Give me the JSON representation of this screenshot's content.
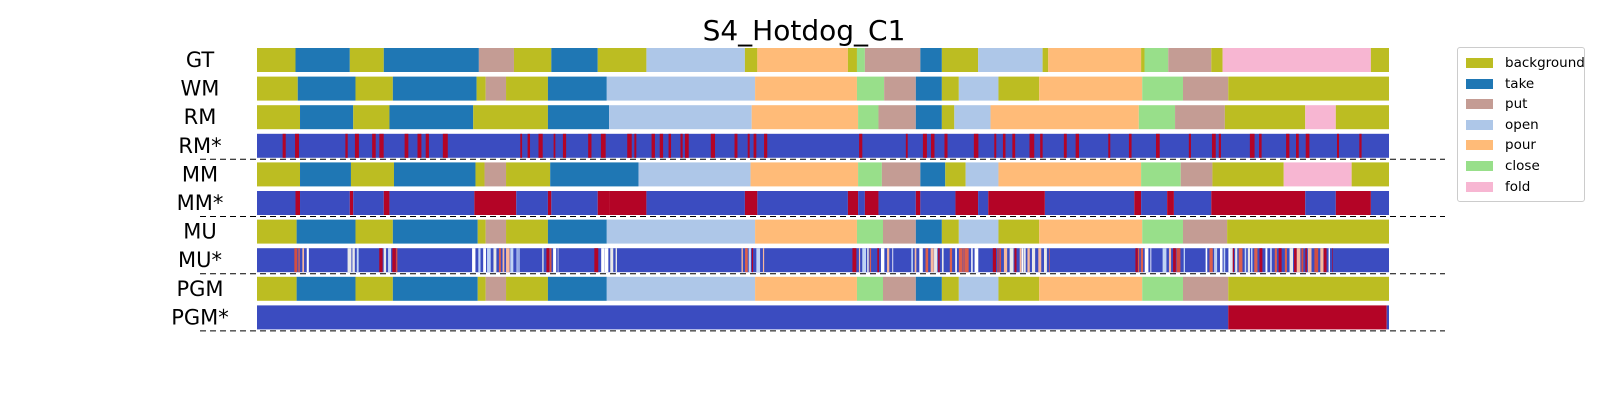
{
  "chart_data": {
    "type": "segmentation-timeline",
    "title": "S4_Hotdog_C1",
    "x_range": [
      0,
      1
    ],
    "classes": [
      {
        "name": "background",
        "color": "#bcbd22"
      },
      {
        "name": "take",
        "color": "#1f77b4"
      },
      {
        "name": "put",
        "color": "#c49c94"
      },
      {
        "name": "open",
        "color": "#aec7e8"
      },
      {
        "name": "pour",
        "color": "#ffbb78"
      },
      {
        "name": "close",
        "color": "#98df8a"
      },
      {
        "name": "fold",
        "color": "#f7b6d2"
      }
    ],
    "error_colors": {
      "correct": "#3b4cc0",
      "error": "#b40426"
    },
    "rows": [
      {
        "label": "GT",
        "kind": "segments",
        "segments": [
          [
            0,
            0.034,
            "background"
          ],
          [
            0.034,
            0.082,
            "take"
          ],
          [
            0.082,
            0.112,
            "background"
          ],
          [
            0.112,
            0.196,
            "take"
          ],
          [
            0.196,
            0.227,
            "put"
          ],
          [
            0.227,
            0.26,
            "background"
          ],
          [
            0.26,
            0.301,
            "take"
          ],
          [
            0.301,
            0.344,
            "background"
          ],
          [
            0.344,
            0.431,
            "open"
          ],
          [
            0.431,
            0.442,
            "background"
          ],
          [
            0.442,
            0.522,
            "pour"
          ],
          [
            0.522,
            0.53,
            "background"
          ],
          [
            0.53,
            0.537,
            "close"
          ],
          [
            0.537,
            0.586,
            "put"
          ],
          [
            0.586,
            0.605,
            "take"
          ],
          [
            0.605,
            0.637,
            "background"
          ],
          [
            0.637,
            0.694,
            "open"
          ],
          [
            0.694,
            0.699,
            "background"
          ],
          [
            0.699,
            0.781,
            "pour"
          ],
          [
            0.781,
            0.784,
            "background"
          ],
          [
            0.784,
            0.805,
            "close"
          ],
          [
            0.805,
            0.843,
            "put"
          ],
          [
            0.843,
            0.853,
            "background"
          ],
          [
            0.853,
            0.984,
            "fold"
          ],
          [
            0.984,
            1,
            "background"
          ]
        ]
      },
      {
        "label": "WM",
        "kind": "segments",
        "segments": [
          [
            0,
            0.036,
            "background"
          ],
          [
            0.036,
            0.087,
            "take"
          ],
          [
            0.087,
            0.12,
            "background"
          ],
          [
            0.12,
            0.194,
            "take"
          ],
          [
            0.194,
            0.202,
            "background"
          ],
          [
            0.202,
            0.22,
            "put"
          ],
          [
            0.22,
            0.257,
            "background"
          ],
          [
            0.257,
            0.309,
            "take"
          ],
          [
            0.309,
            0.44,
            "open"
          ],
          [
            0.44,
            0.53,
            "pour"
          ],
          [
            0.53,
            0.554,
            "close"
          ],
          [
            0.554,
            0.582,
            "put"
          ],
          [
            0.582,
            0.605,
            "take"
          ],
          [
            0.605,
            0.62,
            "background"
          ],
          [
            0.62,
            0.655,
            "open"
          ],
          [
            0.655,
            0.691,
            "background"
          ],
          [
            0.691,
            0.782,
            "pour"
          ],
          [
            0.782,
            0.818,
            "close"
          ],
          [
            0.818,
            0.858,
            "put"
          ],
          [
            0.858,
            1,
            "background"
          ]
        ]
      },
      {
        "label": "RM",
        "kind": "segments",
        "segments": [
          [
            0,
            0.038,
            "background"
          ],
          [
            0.038,
            0.085,
            "take"
          ],
          [
            0.085,
            0.117,
            "background"
          ],
          [
            0.117,
            0.191,
            "take"
          ],
          [
            0.191,
            0.257,
            "background"
          ],
          [
            0.257,
            0.311,
            "take"
          ],
          [
            0.311,
            0.437,
            "open"
          ],
          [
            0.437,
            0.531,
            "pour"
          ],
          [
            0.531,
            0.549,
            "close"
          ],
          [
            0.549,
            0.582,
            "put"
          ],
          [
            0.582,
            0.605,
            "take"
          ],
          [
            0.605,
            0.616,
            "background"
          ],
          [
            0.616,
            0.648,
            "open"
          ],
          [
            0.648,
            0.779,
            "pour"
          ],
          [
            0.779,
            0.811,
            "close"
          ],
          [
            0.811,
            0.855,
            "put"
          ],
          [
            0.855,
            0.926,
            "background"
          ],
          [
            0.926,
            0.953,
            "fold"
          ],
          [
            0.953,
            1,
            "background"
          ]
        ]
      },
      {
        "label": "RM*",
        "kind": "errors-noisy",
        "seed": 7,
        "density": 0.42
      },
      {
        "label": "MM",
        "kind": "segments",
        "segments": [
          [
            0,
            0.038,
            "background"
          ],
          [
            0.038,
            0.083,
            "take"
          ],
          [
            0.083,
            0.121,
            "background"
          ],
          [
            0.121,
            0.193,
            "take"
          ],
          [
            0.193,
            0.201,
            "background"
          ],
          [
            0.201,
            0.22,
            "put"
          ],
          [
            0.22,
            0.259,
            "background"
          ],
          [
            0.259,
            0.337,
            "take"
          ],
          [
            0.337,
            0.436,
            "open"
          ],
          [
            0.436,
            0.531,
            "pour"
          ],
          [
            0.531,
            0.552,
            "close"
          ],
          [
            0.552,
            0.586,
            "put"
          ],
          [
            0.586,
            0.608,
            "take"
          ],
          [
            0.608,
            0.626,
            "background"
          ],
          [
            0.626,
            0.655,
            "open"
          ],
          [
            0.655,
            0.781,
            "pour"
          ],
          [
            0.781,
            0.816,
            "close"
          ],
          [
            0.816,
            0.844,
            "put"
          ],
          [
            0.844,
            0.907,
            "background"
          ],
          [
            0.907,
            0.967,
            "fold"
          ],
          [
            0.967,
            1,
            "background"
          ]
        ]
      },
      {
        "label": "MM*",
        "kind": "errors",
        "segments": [
          [
            0,
            0.034,
            0
          ],
          [
            0.034,
            0.038,
            1
          ],
          [
            0.038,
            0.082,
            0
          ],
          [
            0.082,
            0.085,
            1
          ],
          [
            0.085,
            0.112,
            0
          ],
          [
            0.112,
            0.117,
            1
          ],
          [
            0.117,
            0.192,
            0
          ],
          [
            0.192,
            0.229,
            1
          ],
          [
            0.229,
            0.257,
            0
          ],
          [
            0.257,
            0.26,
            1
          ],
          [
            0.26,
            0.301,
            0
          ],
          [
            0.301,
            0.311,
            1
          ],
          [
            0.311,
            0.344,
            1
          ],
          [
            0.344,
            0.431,
            0
          ],
          [
            0.431,
            0.442,
            1
          ],
          [
            0.442,
            0.522,
            0
          ],
          [
            0.522,
            0.531,
            1
          ],
          [
            0.531,
            0.537,
            0
          ],
          [
            0.537,
            0.549,
            1
          ],
          [
            0.549,
            0.582,
            0
          ],
          [
            0.582,
            0.586,
            1
          ],
          [
            0.586,
            0.617,
            0
          ],
          [
            0.617,
            0.637,
            1
          ],
          [
            0.637,
            0.646,
            0
          ],
          [
            0.646,
            0.696,
            1
          ],
          [
            0.696,
            0.775,
            0
          ],
          [
            0.775,
            0.781,
            1
          ],
          [
            0.781,
            0.804,
            0
          ],
          [
            0.804,
            0.81,
            1
          ],
          [
            0.81,
            0.843,
            0
          ],
          [
            0.843,
            0.926,
            1
          ],
          [
            0.926,
            0.953,
            0
          ],
          [
            0.953,
            0.984,
            1
          ],
          [
            0.984,
            1,
            0
          ]
        ]
      },
      {
        "label": "MU",
        "kind": "segments",
        "segments": [
          [
            0,
            0.035,
            "background"
          ],
          [
            0.035,
            0.087,
            "take"
          ],
          [
            0.087,
            0.12,
            "background"
          ],
          [
            0.12,
            0.195,
            "take"
          ],
          [
            0.195,
            0.202,
            "background"
          ],
          [
            0.202,
            0.22,
            "put"
          ],
          [
            0.22,
            0.257,
            "background"
          ],
          [
            0.257,
            0.309,
            "take"
          ],
          [
            0.309,
            0.44,
            "open"
          ],
          [
            0.44,
            0.53,
            "pour"
          ],
          [
            0.53,
            0.553,
            "close"
          ],
          [
            0.553,
            0.582,
            "put"
          ],
          [
            0.582,
            0.605,
            "take"
          ],
          [
            0.605,
            0.62,
            "background"
          ],
          [
            0.62,
            0.655,
            "open"
          ],
          [
            0.655,
            0.691,
            "background"
          ],
          [
            0.691,
            0.782,
            "pour"
          ],
          [
            0.782,
            0.818,
            "close"
          ],
          [
            0.818,
            0.857,
            "put"
          ],
          [
            0.857,
            1,
            "background"
          ]
        ]
      },
      {
        "label": "MU*",
        "kind": "errors-clusters",
        "seed": 11,
        "clusters": [
          [
            0.033,
            0.046
          ],
          [
            0.08,
            0.09
          ],
          [
            0.108,
            0.124
          ],
          [
            0.19,
            0.232
          ],
          [
            0.252,
            0.266
          ],
          [
            0.298,
            0.318
          ],
          [
            0.428,
            0.448
          ],
          [
            0.526,
            0.544
          ],
          [
            0.548,
            0.562
          ],
          [
            0.578,
            0.608
          ],
          [
            0.612,
            0.64
          ],
          [
            0.65,
            0.7
          ],
          [
            0.776,
            0.79
          ],
          [
            0.8,
            0.82
          ],
          [
            0.838,
            0.862
          ],
          [
            0.862,
            0.95
          ]
        ]
      },
      {
        "label": "PGM",
        "kind": "segments",
        "segments": [
          [
            0,
            0.035,
            "background"
          ],
          [
            0.035,
            0.087,
            "take"
          ],
          [
            0.087,
            0.12,
            "background"
          ],
          [
            0.12,
            0.195,
            "take"
          ],
          [
            0.195,
            0.202,
            "background"
          ],
          [
            0.202,
            0.22,
            "put"
          ],
          [
            0.22,
            0.257,
            "background"
          ],
          [
            0.257,
            0.309,
            "take"
          ],
          [
            0.309,
            0.44,
            "open"
          ],
          [
            0.44,
            0.53,
            "pour"
          ],
          [
            0.53,
            0.553,
            "close"
          ],
          [
            0.553,
            0.582,
            "put"
          ],
          [
            0.582,
            0.605,
            "take"
          ],
          [
            0.605,
            0.62,
            "background"
          ],
          [
            0.62,
            0.655,
            "open"
          ],
          [
            0.655,
            0.691,
            "background"
          ],
          [
            0.691,
            0.782,
            "pour"
          ],
          [
            0.782,
            0.818,
            "close"
          ],
          [
            0.818,
            0.858,
            "put"
          ],
          [
            0.858,
            1,
            "background"
          ]
        ]
      },
      {
        "label": "PGM*",
        "kind": "errors",
        "segments": [
          [
            0,
            0.858,
            0
          ],
          [
            0.858,
            0.998,
            1
          ],
          [
            0.998,
            1,
            0
          ]
        ]
      }
    ],
    "separators_after": [
      "RM*",
      "MM*",
      "MU*",
      "PGM*"
    ]
  }
}
